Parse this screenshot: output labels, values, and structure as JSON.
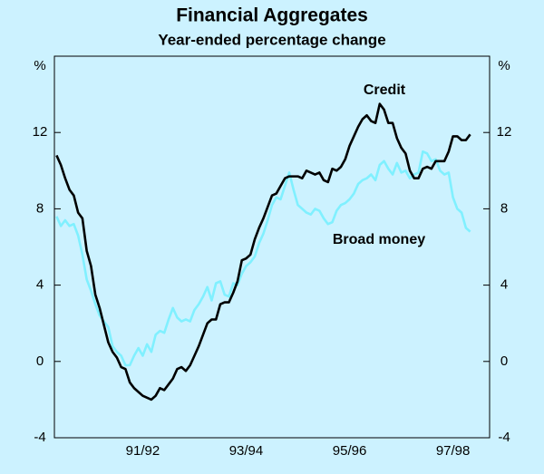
{
  "chart_data": {
    "type": "line",
    "title": "Financial Aggregates",
    "subtitle": "Year-ended percentage change",
    "ylabel": "%",
    "ylim": [
      -4,
      16
    ],
    "yticks": [
      -4,
      0,
      4,
      8,
      12
    ],
    "categories": [
      null,
      null,
      null,
      null,
      null,
      null,
      null,
      null,
      null,
      null,
      null,
      null,
      null,
      null,
      null,
      null,
      null,
      null,
      null,
      null,
      "91/92",
      null,
      null,
      null,
      null,
      null,
      null,
      null,
      null,
      null,
      null,
      null,
      null,
      null,
      null,
      null,
      null,
      null,
      null,
      null,
      null,
      null,
      null,
      null,
      "93/94",
      null,
      null,
      null,
      null,
      null,
      null,
      null,
      null,
      null,
      null,
      null,
      null,
      null,
      null,
      null,
      null,
      null,
      null,
      null,
      null,
      null,
      null,
      null,
      "95/96",
      null,
      null,
      null,
      null,
      null,
      null,
      null,
      null,
      null,
      null,
      null,
      null,
      null,
      null,
      null,
      null,
      null,
      null,
      null,
      null,
      null,
      null,
      null,
      "97/98",
      null,
      null,
      null,
      null,
      null,
      null,
      null,
      null
    ],
    "series": [
      {
        "name": "Credit",
        "color": "#000000",
        "values": [
          10.8,
          10.3,
          9.6,
          9.0,
          8.7,
          7.8,
          7.5,
          5.8,
          5.0,
          3.5,
          2.8,
          1.9,
          1.0,
          0.5,
          0.2,
          -0.3,
          -0.4,
          -1.1,
          -1.4,
          -1.6,
          -1.8,
          -1.9,
          -2.0,
          -1.8,
          -1.4,
          -1.5,
          -1.2,
          -0.9,
          -0.4,
          -0.3,
          -0.5,
          -0.2,
          0.3,
          0.8,
          1.4,
          2.0,
          2.2,
          2.2,
          3.0,
          3.1,
          3.1,
          3.6,
          4.2,
          5.3,
          5.4,
          5.6,
          6.4,
          7.0,
          7.5,
          8.1,
          8.7,
          8.8,
          9.2,
          9.6,
          9.7,
          9.7,
          9.7,
          9.6,
          10.0,
          9.9,
          9.8,
          9.9,
          9.5,
          9.4,
          10.1,
          10.0,
          10.2,
          10.6,
          11.3,
          11.8,
          12.3,
          12.7,
          12.9,
          12.6,
          12.5,
          13.5,
          13.2,
          12.5,
          12.5,
          11.7,
          11.2,
          10.9,
          10.0,
          9.6,
          9.6,
          10.1,
          10.2,
          10.1,
          10.5,
          10.5,
          10.5,
          11.0,
          11.8,
          11.8,
          11.6,
          11.6,
          11.9,
          null,
          null,
          null,
          null
        ]
      },
      {
        "name": "Broad money",
        "color": "#80f0ff",
        "values": [
          7.6,
          7.1,
          7.4,
          7.1,
          7.2,
          6.6,
          5.6,
          4.3,
          3.7,
          3.0,
          2.4,
          2.1,
          1.8,
          0.8,
          0.5,
          0.3,
          -0.2,
          -0.2,
          0.3,
          0.7,
          0.3,
          0.9,
          0.5,
          1.4,
          1.6,
          1.5,
          2.2,
          2.8,
          2.3,
          2.1,
          2.2,
          2.1,
          2.7,
          3.0,
          3.4,
          3.9,
          3.2,
          4.1,
          4.2,
          3.5,
          3.4,
          4.1,
          4.0,
          4.6,
          5.0,
          5.2,
          5.5,
          6.2,
          6.7,
          7.4,
          8.2,
          8.6,
          8.5,
          9.2,
          9.9,
          9.0,
          8.2,
          8.0,
          7.8,
          7.7,
          8.0,
          7.9,
          7.5,
          7.2,
          7.3,
          7.9,
          8.2,
          8.3,
          8.5,
          8.8,
          9.3,
          9.5,
          9.6,
          9.8,
          9.5,
          10.3,
          10.5,
          10.1,
          9.8,
          10.4,
          9.9,
          10.0,
          9.6,
          9.8,
          9.9,
          11.0,
          10.9,
          10.5,
          10.6,
          10.0,
          9.8,
          9.9,
          8.6,
          8.0,
          7.8,
          7.0,
          6.8,
          null,
          null,
          null,
          null
        ]
      }
    ]
  }
}
